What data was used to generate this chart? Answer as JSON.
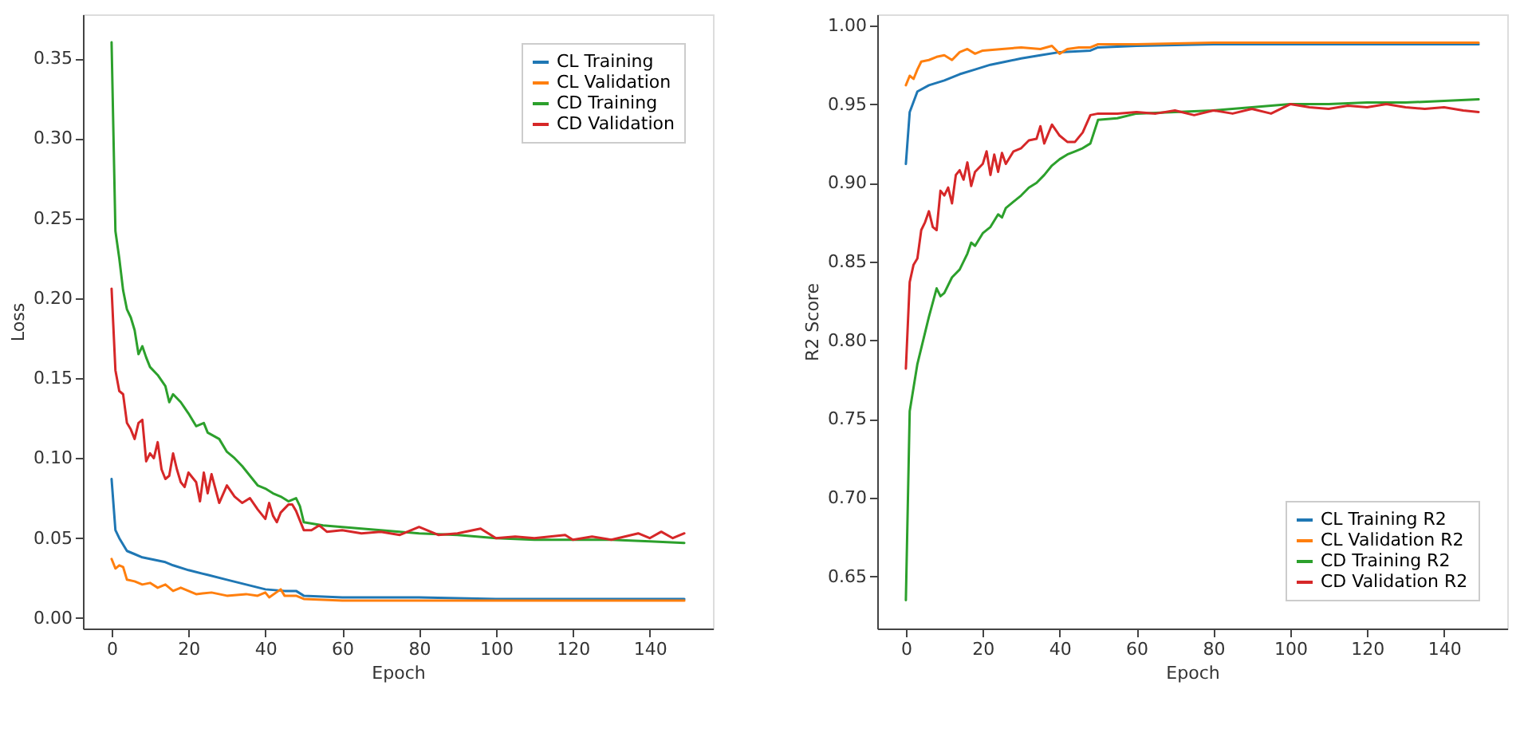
{
  "chart_data": [
    {
      "type": "line",
      "xlabel": "Epoch",
      "ylabel": "Loss",
      "legend": "top right",
      "line_style": "solid",
      "marker": "none",
      "xlim": [
        -7.45,
        156.45
      ],
      "xticks": [
        0,
        20,
        40,
        60,
        80,
        100,
        120,
        140
      ],
      "ylim": [
        -0.0065,
        0.3775
      ],
      "yticks": [
        {
          "value": 0,
          "label": "0.00"
        },
        {
          "value": 0.05,
          "label": "0.05"
        },
        {
          "value": 0.1,
          "label": "0.10"
        },
        {
          "value": 0.15,
          "label": "0.15"
        },
        {
          "value": 0.2,
          "label": "0.20"
        },
        {
          "value": 0.25,
          "label": "0.25"
        },
        {
          "value": 0.3,
          "label": "0.30"
        },
        {
          "value": 0.35,
          "label": "0.35"
        }
      ],
      "series": [
        {
          "name": "CL Training",
          "color": "#1f77b4",
          "x": [
            0,
            1,
            2,
            4,
            6,
            8,
            10,
            14,
            16,
            20,
            25,
            30,
            35,
            40,
            45,
            48,
            50,
            60,
            80,
            100,
            120,
            149
          ],
          "values": [
            0.087,
            0.055,
            0.05,
            0.042,
            0.04,
            0.038,
            0.037,
            0.035,
            0.033,
            0.03,
            0.027,
            0.024,
            0.021,
            0.018,
            0.017,
            0.017,
            0.014,
            0.013,
            0.013,
            0.012,
            0.012,
            0.012
          ]
        },
        {
          "name": "CL Validation",
          "color": "#ff7f0e",
          "x": [
            0,
            1,
            2,
            3,
            4,
            6,
            8,
            10,
            12,
            14,
            16,
            18,
            20,
            22,
            26,
            30,
            35,
            38,
            40,
            41,
            44,
            45,
            48,
            50,
            60,
            80,
            100,
            149
          ],
          "values": [
            0.037,
            0.031,
            0.033,
            0.032,
            0.024,
            0.023,
            0.021,
            0.022,
            0.019,
            0.021,
            0.017,
            0.019,
            0.017,
            0.015,
            0.016,
            0.014,
            0.015,
            0.014,
            0.016,
            0.013,
            0.018,
            0.014,
            0.014,
            0.012,
            0.011,
            0.011,
            0.011,
            0.011
          ]
        },
        {
          "name": "CD Training",
          "color": "#2ca02c",
          "x": [
            0,
            1,
            2,
            3,
            4,
            5,
            6,
            7,
            8,
            9,
            10,
            12,
            14,
            15,
            16,
            18,
            20,
            22,
            24,
            25,
            28,
            30,
            32,
            34,
            36,
            38,
            40,
            42,
            44,
            46,
            48,
            49,
            50,
            55,
            60,
            70,
            80,
            90,
            100,
            110,
            120,
            130,
            140,
            149
          ],
          "values": [
            0.36,
            0.242,
            0.225,
            0.205,
            0.193,
            0.188,
            0.18,
            0.165,
            0.17,
            0.163,
            0.157,
            0.152,
            0.145,
            0.135,
            0.14,
            0.135,
            0.128,
            0.12,
            0.122,
            0.116,
            0.112,
            0.104,
            0.1,
            0.095,
            0.089,
            0.083,
            0.081,
            0.078,
            0.076,
            0.073,
            0.075,
            0.07,
            0.06,
            0.058,
            0.057,
            0.055,
            0.053,
            0.052,
            0.05,
            0.049,
            0.049,
            0.049,
            0.048,
            0.047
          ]
        },
        {
          "name": "CD Validation",
          "color": "#d62728",
          "x": [
            0,
            1,
            2,
            3,
            4,
            5,
            6,
            7,
            8,
            9,
            10,
            11,
            12,
            13,
            14,
            15,
            16,
            17,
            18,
            19,
            20,
            22,
            23,
            24,
            25,
            26,
            28,
            30,
            32,
            34,
            36,
            38,
            40,
            41,
            42,
            43,
            44,
            46,
            47,
            48,
            50,
            52,
            54,
            56,
            60,
            65,
            70,
            75,
            80,
            85,
            90,
            96,
            100,
            105,
            110,
            118,
            120,
            125,
            130,
            137,
            140,
            143,
            146,
            149
          ],
          "values": [
            0.206,
            0.155,
            0.142,
            0.14,
            0.122,
            0.118,
            0.112,
            0.122,
            0.124,
            0.098,
            0.103,
            0.1,
            0.11,
            0.093,
            0.087,
            0.089,
            0.103,
            0.093,
            0.085,
            0.082,
            0.091,
            0.085,
            0.073,
            0.091,
            0.078,
            0.09,
            0.072,
            0.083,
            0.076,
            0.072,
            0.075,
            0.068,
            0.062,
            0.072,
            0.064,
            0.06,
            0.066,
            0.071,
            0.071,
            0.067,
            0.055,
            0.055,
            0.058,
            0.054,
            0.055,
            0.053,
            0.054,
            0.052,
            0.057,
            0.052,
            0.053,
            0.056,
            0.05,
            0.051,
            0.05,
            0.052,
            0.049,
            0.051,
            0.049,
            0.053,
            0.05,
            0.054,
            0.05,
            0.053
          ]
        }
      ]
    },
    {
      "type": "line",
      "xlabel": "Epoch",
      "ylabel": "R2 Score",
      "legend": "bottom right",
      "line_style": "solid",
      "marker": "none",
      "xlim": [
        -7.45,
        156.45
      ],
      "xticks": [
        0,
        20,
        40,
        60,
        80,
        100,
        120,
        140
      ],
      "ylim": [
        0.617,
        1.007
      ],
      "yticks": [
        {
          "value": 0.65,
          "label": "0.65"
        },
        {
          "value": 0.7,
          "label": "0.70"
        },
        {
          "value": 0.75,
          "label": "0.75"
        },
        {
          "value": 0.8,
          "label": "0.80"
        },
        {
          "value": 0.85,
          "label": "0.85"
        },
        {
          "value": 0.9,
          "label": "0.90"
        },
        {
          "value": 0.95,
          "label": "0.95"
        },
        {
          "value": 1.0,
          "label": "1.00"
        }
      ],
      "series": [
        {
          "name": "CL Training R2",
          "color": "#1f77b4",
          "x": [
            0,
            1,
            3,
            6,
            10,
            14,
            18,
            22,
            26,
            30,
            35,
            40,
            48,
            50,
            60,
            80,
            100,
            149
          ],
          "values": [
            0.912,
            0.945,
            0.958,
            0.962,
            0.965,
            0.969,
            0.972,
            0.975,
            0.977,
            0.979,
            0.981,
            0.983,
            0.984,
            0.986,
            0.987,
            0.988,
            0.988,
            0.988
          ]
        },
        {
          "name": "CL Validation R2",
          "color": "#ff7f0e",
          "x": [
            0,
            1,
            2,
            3,
            4,
            6,
            8,
            10,
            12,
            14,
            16,
            18,
            20,
            25,
            30,
            35,
            38,
            40,
            42,
            45,
            48,
            50,
            60,
            80,
            100,
            149
          ],
          "values": [
            0.962,
            0.968,
            0.966,
            0.972,
            0.977,
            0.978,
            0.98,
            0.981,
            0.978,
            0.983,
            0.985,
            0.982,
            0.984,
            0.985,
            0.986,
            0.985,
            0.987,
            0.982,
            0.985,
            0.986,
            0.986,
            0.988,
            0.988,
            0.989,
            0.989,
            0.989
          ]
        },
        {
          "name": "CD Training R2",
          "color": "#2ca02c",
          "x": [
            0,
            1,
            3,
            5,
            6,
            8,
            9,
            10,
            12,
            14,
            16,
            17,
            18,
            20,
            22,
            24,
            25,
            26,
            28,
            30,
            32,
            34,
            36,
            38,
            40,
            42,
            44,
            46,
            48,
            50,
            55,
            60,
            70,
            80,
            90,
            100,
            110,
            120,
            130,
            140,
            149
          ],
          "values": [
            0.635,
            0.755,
            0.785,
            0.805,
            0.815,
            0.833,
            0.828,
            0.83,
            0.84,
            0.845,
            0.855,
            0.862,
            0.86,
            0.868,
            0.872,
            0.88,
            0.878,
            0.884,
            0.888,
            0.892,
            0.897,
            0.9,
            0.905,
            0.911,
            0.915,
            0.918,
            0.92,
            0.922,
            0.925,
            0.94,
            0.941,
            0.944,
            0.945,
            0.946,
            0.948,
            0.95,
            0.95,
            0.951,
            0.951,
            0.952,
            0.953
          ]
        },
        {
          "name": "CD Validation R2",
          "color": "#d62728",
          "x": [
            0,
            1,
            2,
            3,
            4,
            5,
            6,
            7,
            8,
            9,
            10,
            11,
            12,
            13,
            14,
            15,
            16,
            17,
            18,
            20,
            21,
            22,
            23,
            24,
            25,
            26,
            28,
            30,
            32,
            34,
            35,
            36,
            38,
            40,
            42,
            44,
            46,
            48,
            50,
            55,
            60,
            65,
            70,
            75,
            80,
            85,
            90,
            95,
            100,
            105,
            110,
            115,
            120,
            125,
            130,
            135,
            140,
            145,
            149
          ],
          "values": [
            0.782,
            0.837,
            0.848,
            0.852,
            0.87,
            0.875,
            0.882,
            0.872,
            0.87,
            0.895,
            0.892,
            0.897,
            0.887,
            0.905,
            0.908,
            0.902,
            0.913,
            0.898,
            0.907,
            0.912,
            0.92,
            0.905,
            0.918,
            0.907,
            0.919,
            0.912,
            0.92,
            0.922,
            0.927,
            0.928,
            0.936,
            0.925,
            0.937,
            0.93,
            0.926,
            0.926,
            0.932,
            0.943,
            0.944,
            0.944,
            0.945,
            0.944,
            0.946,
            0.943,
            0.946,
            0.944,
            0.947,
            0.944,
            0.95,
            0.948,
            0.947,
            0.949,
            0.948,
            0.95,
            0.948,
            0.947,
            0.948,
            0.946,
            0.945
          ]
        }
      ]
    }
  ]
}
